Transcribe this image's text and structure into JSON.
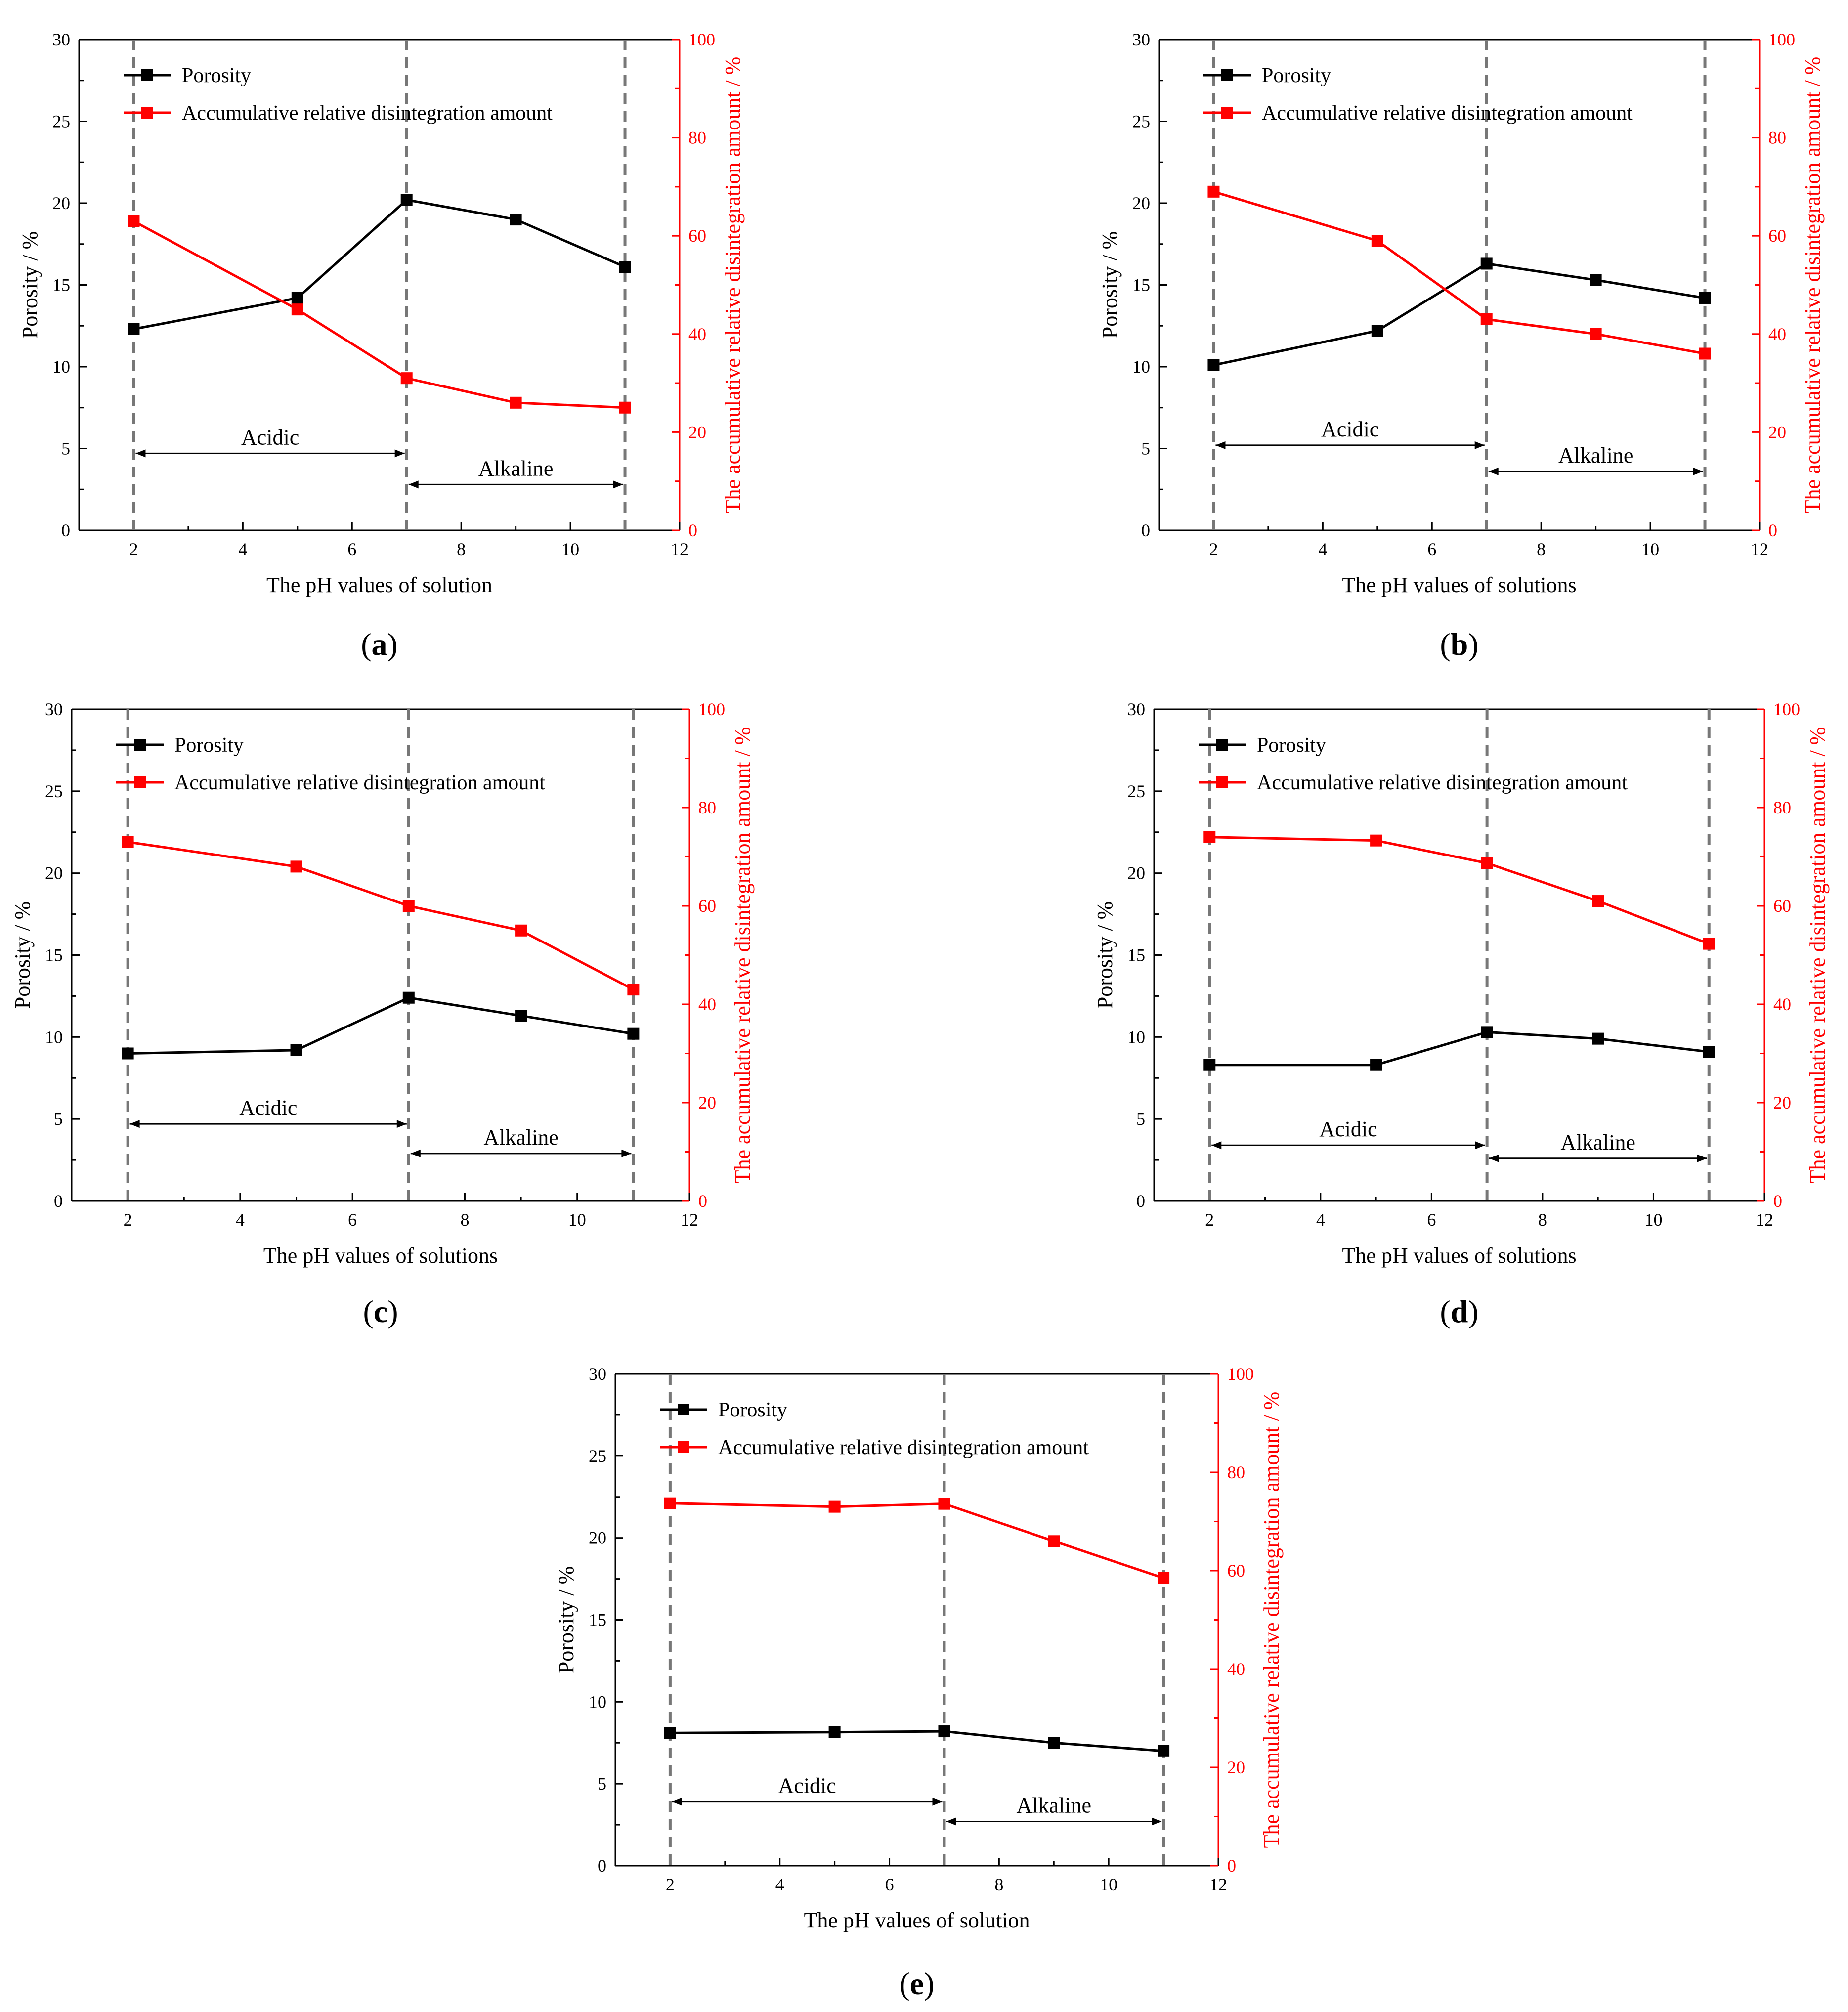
{
  "chart_data": [
    {
      "panel": "a",
      "type": "line",
      "panel_label": "a",
      "xlabel": "The pH values of solution",
      "ylabel": "Porosity / %",
      "y2label": "The accumulative relative disintegration amount / %",
      "xlim": [
        1,
        12
      ],
      "xticks": [
        2,
        4,
        6,
        8,
        10,
        12
      ],
      "ylim": [
        0,
        30
      ],
      "yticks": [
        0,
        5,
        10,
        15,
        20,
        25,
        30
      ],
      "y2lim": [
        0,
        100
      ],
      "y2ticks": [
        0,
        20,
        40,
        60,
        80,
        100
      ],
      "vlines": [
        2,
        7,
        11
      ],
      "regions": [
        {
          "label": "Acidic",
          "from": 2,
          "to": 7,
          "y": 4.7
        },
        {
          "label": "Alkaline",
          "from": 7,
          "to": 11,
          "y": 2.8
        }
      ],
      "legend": {
        "placement": "top-left"
      },
      "series": [
        {
          "name": "Porosity",
          "axis": "left",
          "color": "#000000",
          "x": [
            2,
            5,
            7,
            9,
            11
          ],
          "values": [
            12.3,
            14.2,
            20.2,
            19.0,
            16.1
          ]
        },
        {
          "name": "Accumulative relative disintegration amount",
          "axis": "right",
          "color": "#ff0000",
          "x": [
            2,
            5,
            7,
            9,
            11
          ],
          "values": [
            63.0,
            45.0,
            31.0,
            26.0,
            25.0
          ]
        }
      ]
    },
    {
      "panel": "b",
      "type": "line",
      "panel_label": "b",
      "xlabel": "The pH values of solutions",
      "ylabel": "Porosity / %",
      "y2label": "The accumulative relative disintegration amount / %",
      "xlim": [
        1,
        12
      ],
      "xticks": [
        2,
        4,
        6,
        8,
        10,
        12
      ],
      "ylim": [
        0,
        30
      ],
      "yticks": [
        0,
        5,
        10,
        15,
        20,
        25,
        30
      ],
      "y2lim": [
        0,
        100
      ],
      "y2ticks": [
        0,
        20,
        40,
        60,
        80,
        100
      ],
      "vlines": [
        2,
        7,
        11
      ],
      "regions": [
        {
          "label": "Acidic",
          "from": 2,
          "to": 7,
          "y": 5.2
        },
        {
          "label": "Alkaline",
          "from": 7,
          "to": 11,
          "y": 3.6
        }
      ],
      "legend": {
        "placement": "top-left"
      },
      "series": [
        {
          "name": "Porosity",
          "axis": "left",
          "color": "#000000",
          "x": [
            2,
            5,
            7,
            9,
            11
          ],
          "values": [
            10.1,
            12.2,
            16.3,
            15.3,
            14.2
          ]
        },
        {
          "name": "Accumulative relative disintegration amount",
          "axis": "right",
          "color": "#ff0000",
          "x": [
            2,
            5,
            7,
            9,
            11
          ],
          "values": [
            69.0,
            59.0,
            43.0,
            40.0,
            36.0
          ]
        }
      ]
    },
    {
      "panel": "c",
      "type": "line",
      "panel_label": "c",
      "xlabel": "The pH values of solutions",
      "ylabel": "Porosity / %",
      "y2label": "The accumulative relative disintegration amount / %",
      "xlim": [
        1,
        12
      ],
      "xticks": [
        2,
        4,
        6,
        8,
        10,
        12
      ],
      "ylim": [
        0,
        30
      ],
      "yticks": [
        0,
        5,
        10,
        15,
        20,
        25,
        30
      ],
      "y2lim": [
        0,
        100
      ],
      "y2ticks": [
        0,
        20,
        40,
        60,
        80,
        100
      ],
      "vlines": [
        2,
        7,
        11
      ],
      "regions": [
        {
          "label": "Acidic",
          "from": 2,
          "to": 7,
          "y": 4.7
        },
        {
          "label": "Alkaline",
          "from": 7,
          "to": 11,
          "y": 2.9
        }
      ],
      "legend": {
        "placement": "top-left"
      },
      "series": [
        {
          "name": "Porosity",
          "axis": "left",
          "color": "#000000",
          "x": [
            2,
            5,
            7,
            9,
            11
          ],
          "values": [
            9.0,
            9.2,
            12.4,
            11.3,
            10.2
          ]
        },
        {
          "name": "Accumulative relative disintegration amount",
          "axis": "right",
          "color": "#ff0000",
          "x": [
            2,
            5,
            7,
            9,
            11
          ],
          "values": [
            73.0,
            68.0,
            60.0,
            55.0,
            43.0
          ]
        }
      ]
    },
    {
      "panel": "d",
      "type": "line",
      "panel_label": "d",
      "xlabel": "The pH values of solutions",
      "ylabel": "Porosity / %",
      "y2label": "The accumulative relative disintegration amount / %",
      "xlim": [
        1,
        12
      ],
      "xticks": [
        2,
        4,
        6,
        8,
        10,
        12
      ],
      "ylim": [
        0,
        30
      ],
      "yticks": [
        0,
        5,
        10,
        15,
        20,
        25,
        30
      ],
      "y2lim": [
        0,
        100
      ],
      "y2ticks": [
        0,
        20,
        40,
        60,
        80,
        100
      ],
      "vlines": [
        2,
        7,
        11
      ],
      "regions": [
        {
          "label": "Acidic",
          "from": 2,
          "to": 7,
          "y": 3.4
        },
        {
          "label": "Alkaline",
          "from": 7,
          "to": 11,
          "y": 2.6
        }
      ],
      "legend": {
        "placement": "top-left"
      },
      "series": [
        {
          "name": "Porosity",
          "axis": "left",
          "color": "#000000",
          "x": [
            2,
            5,
            7,
            9,
            11
          ],
          "values": [
            8.3,
            8.3,
            10.3,
            9.9,
            9.1
          ]
        },
        {
          "name": "Accumulative relative disintegration amount",
          "axis": "right",
          "color": "#ff0000",
          "x": [
            2,
            5,
            7,
            9,
            11
          ],
          "values": [
            74.0,
            73.3,
            68.7,
            61.0,
            52.3
          ]
        }
      ]
    },
    {
      "panel": "e",
      "type": "line",
      "panel_label": "e",
      "xlabel": "The pH values of solution",
      "ylabel": "Porosity / %",
      "y2label": "The accumulative relative disintegration amount / %",
      "xlim": [
        1,
        12
      ],
      "xticks": [
        2,
        4,
        6,
        8,
        10,
        12
      ],
      "ylim": [
        0,
        30
      ],
      "yticks": [
        0,
        5,
        10,
        15,
        20,
        25,
        30
      ],
      "y2lim": [
        0,
        100
      ],
      "y2ticks": [
        0,
        20,
        40,
        60,
        80,
        100
      ],
      "vlines": [
        2,
        7,
        11
      ],
      "regions": [
        {
          "label": "Acidic",
          "from": 2,
          "to": 7,
          "y": 3.9
        },
        {
          "label": "Alkaline",
          "from": 7,
          "to": 11,
          "y": 2.7
        }
      ],
      "legend": {
        "placement": "top-left"
      },
      "series": [
        {
          "name": "Porosity",
          "axis": "left",
          "color": "#000000",
          "x": [
            2,
            5,
            7,
            9,
            11
          ],
          "values": [
            8.1,
            8.15,
            8.2,
            7.5,
            7.0
          ]
        },
        {
          "name": "Accumulative relative disintegration amount",
          "axis": "right",
          "color": "#ff0000",
          "x": [
            2,
            5,
            7,
            9,
            11
          ],
          "values": [
            73.7,
            73.0,
            73.6,
            66.0,
            58.5
          ]
        }
      ]
    }
  ]
}
